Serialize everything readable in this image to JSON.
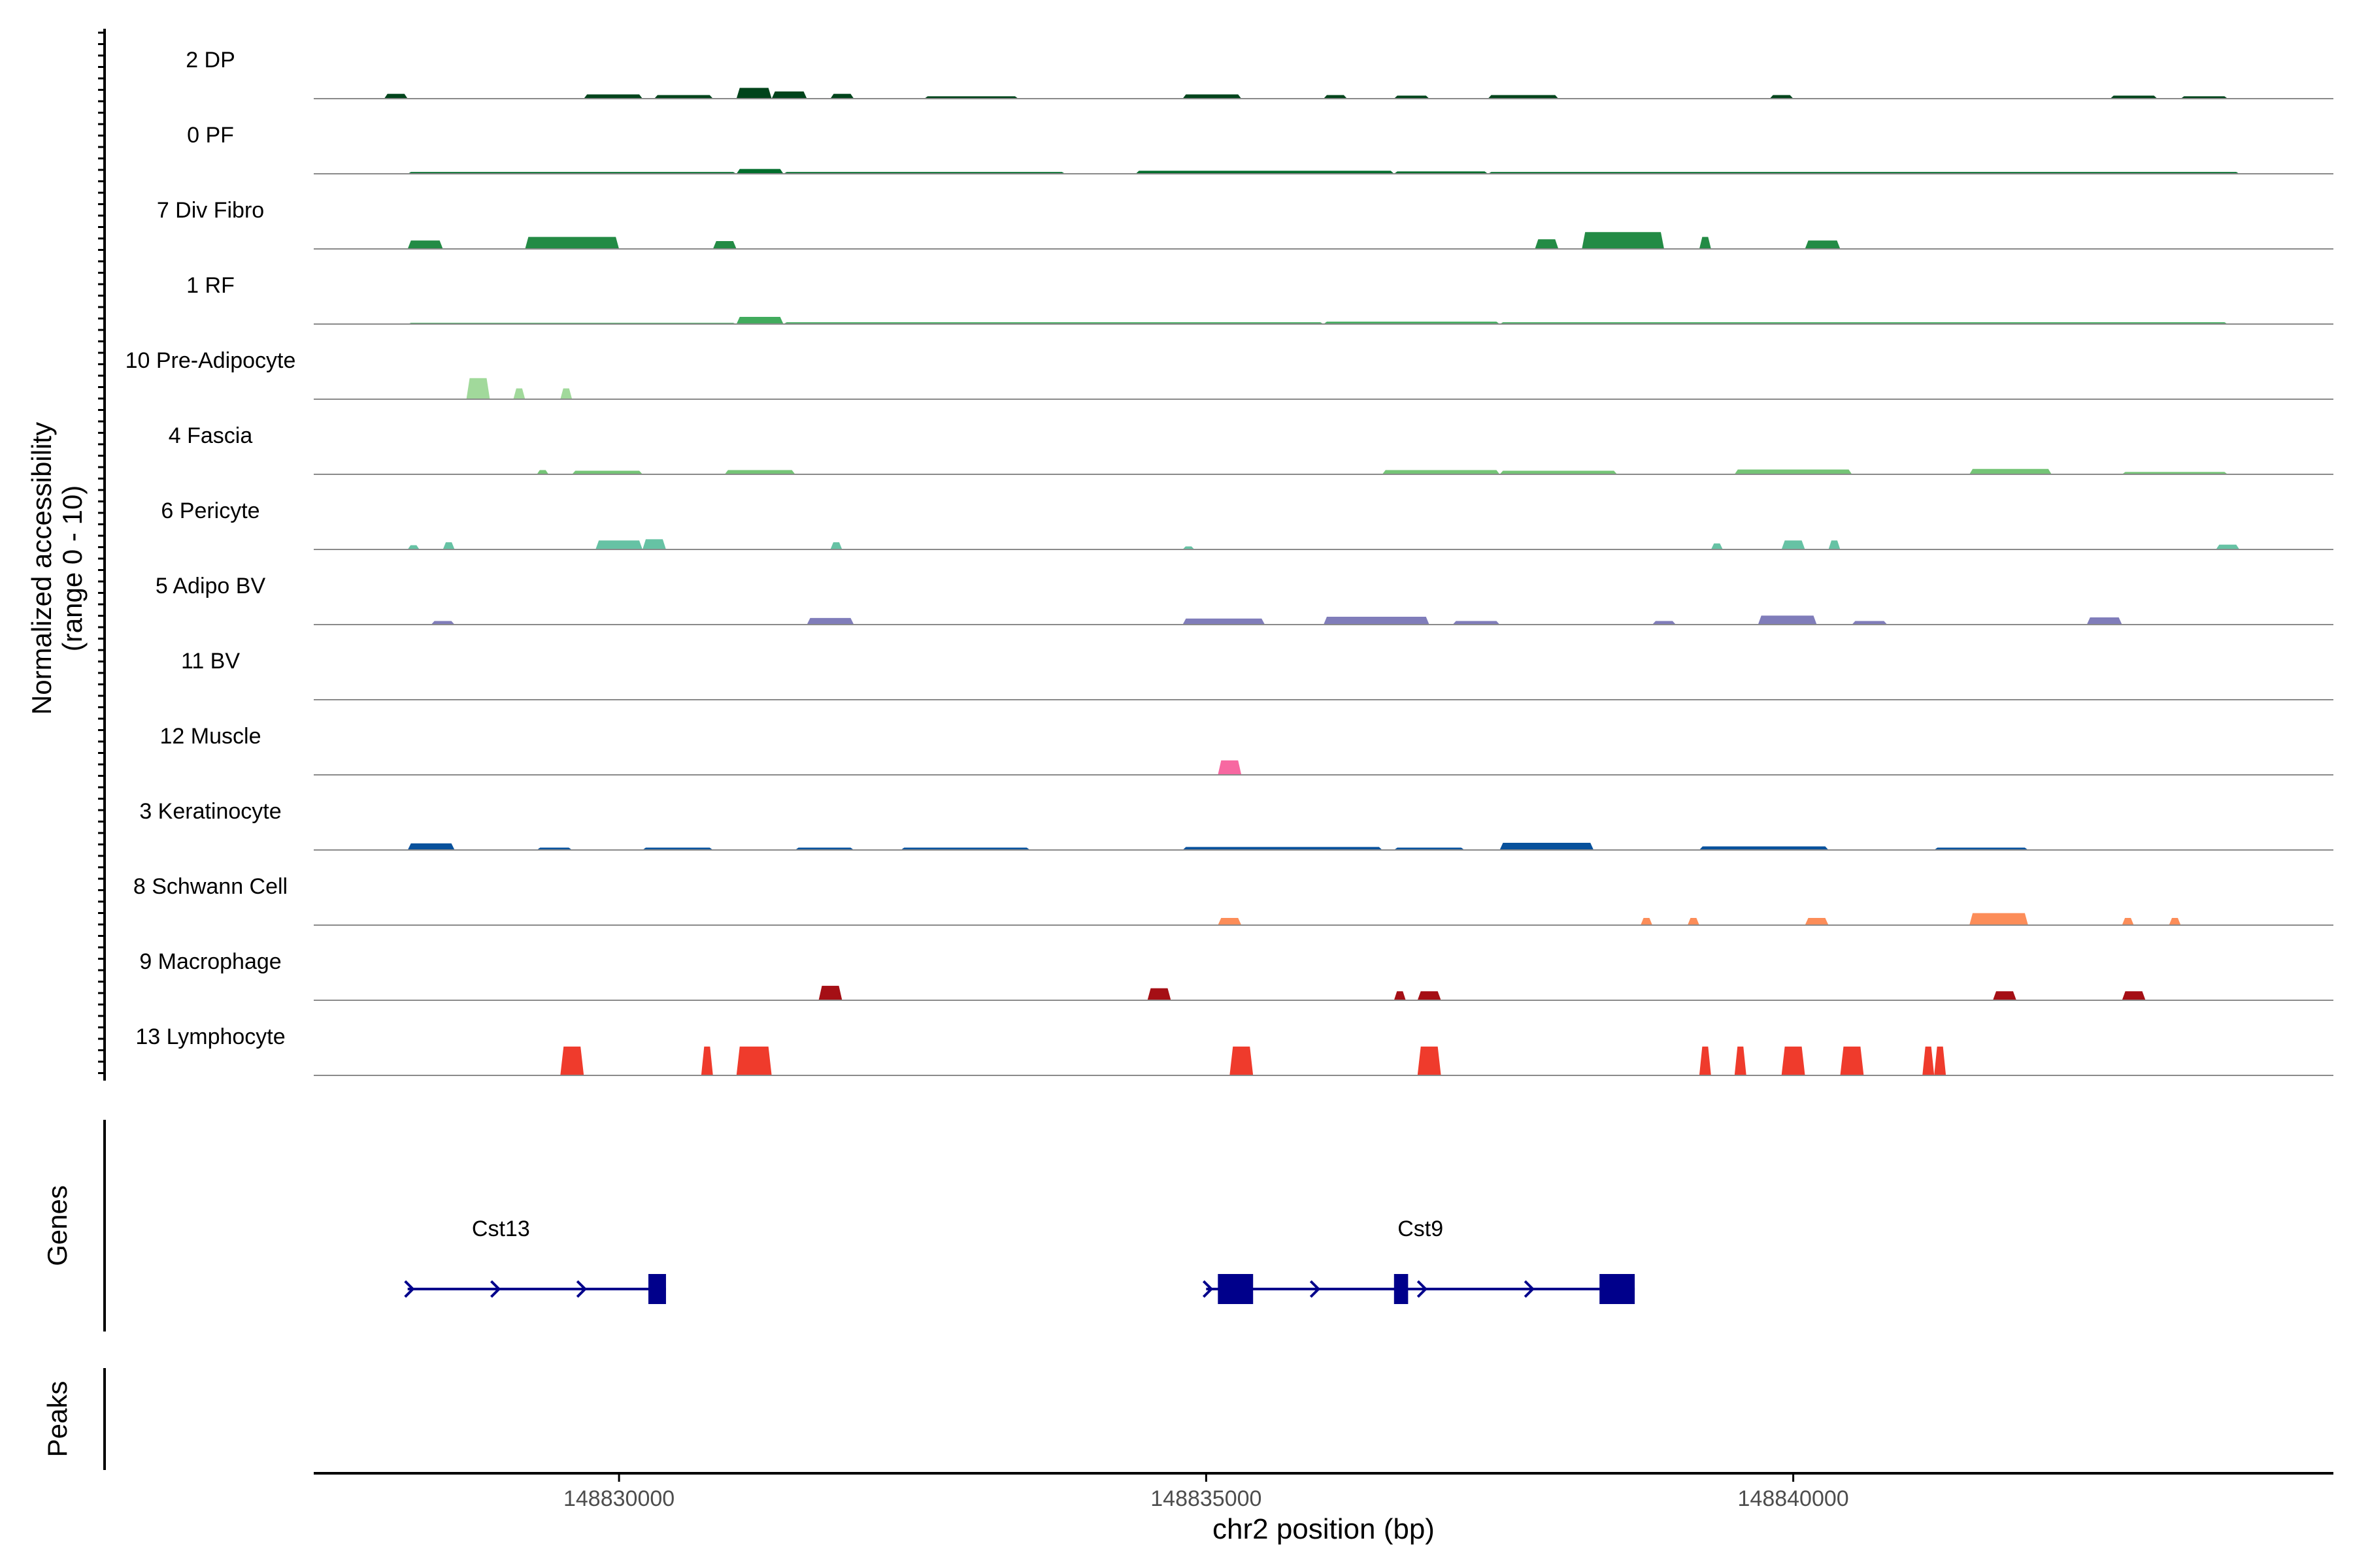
{
  "chart_data": {
    "type": "area",
    "chromosome": "chr2",
    "xlabel": "chr2 position (bp)",
    "xlim": [
      148827400,
      148844600
    ],
    "xticks": [
      148830000,
      148835000,
      148840000
    ],
    "xtick_labels": [
      "148830000",
      "148835000",
      "148840000"
    ],
    "ylabel_line1": "Normalized accessibility",
    "ylabel_line2": "(range 0 - 10)",
    "ylim": [
      0,
      10
    ],
    "genes_label": "Genes",
    "peaks_label": "Peaks",
    "tracks": [
      {
        "name": "2 DP",
        "color": "#00441b",
        "regions": [
          [
            148828000,
            148828200,
            0.8
          ],
          [
            148829700,
            148830200,
            0.7
          ],
          [
            148830300,
            148830800,
            0.6
          ],
          [
            148831000,
            148831300,
            1.8
          ],
          [
            148831300,
            148831600,
            1.2
          ],
          [
            148831800,
            148832000,
            0.8
          ],
          [
            148832600,
            148833400,
            0.4
          ],
          [
            148834800,
            148835300,
            0.7
          ],
          [
            148836000,
            148836200,
            0.6
          ],
          [
            148836600,
            148836900,
            0.5
          ],
          [
            148837400,
            148838000,
            0.6
          ],
          [
            148839800,
            148840000,
            0.6
          ],
          [
            148842700,
            148843100,
            0.5
          ],
          [
            148843300,
            148843700,
            0.4
          ]
        ]
      },
      {
        "name": "0 PF",
        "color": "#006d2c",
        "regions": [
          [
            148828200,
            148831000,
            0.3
          ],
          [
            148831000,
            148831400,
            0.8
          ],
          [
            148831400,
            148833800,
            0.3
          ],
          [
            148834400,
            148836600,
            0.5
          ],
          [
            148836600,
            148837400,
            0.4
          ],
          [
            148837400,
            148843800,
            0.3
          ]
        ]
      },
      {
        "name": "7 Div Fibro",
        "color": "#238b45",
        "regions": [
          [
            148828200,
            148828500,
            1.4
          ],
          [
            148829200,
            148830000,
            2.0
          ],
          [
            148830800,
            148831000,
            1.3
          ],
          [
            148837800,
            148838000,
            1.6
          ],
          [
            148838200,
            148838900,
            2.8
          ],
          [
            148839200,
            148839300,
            2.0
          ],
          [
            148840100,
            148840400,
            1.4
          ]
        ]
      },
      {
        "name": "1 RF",
        "color": "#41ab5d",
        "regions": [
          [
            148828200,
            148831000,
            0.2
          ],
          [
            148831000,
            148831400,
            1.2
          ],
          [
            148831400,
            148836000,
            0.3
          ],
          [
            148836000,
            148837500,
            0.4
          ],
          [
            148837500,
            148843700,
            0.3
          ]
        ]
      },
      {
        "name": "10 Pre-Adipocyte",
        "color": "#a1d99b",
        "regions": [
          [
            148828700,
            148828900,
            3.5
          ],
          [
            148829100,
            148829200,
            1.8
          ],
          [
            148829500,
            148829600,
            1.8
          ]
        ]
      },
      {
        "name": "4 Fascia",
        "color": "#74c476",
        "regions": [
          [
            148829300,
            148829400,
            0.7
          ],
          [
            148829600,
            148830200,
            0.6
          ],
          [
            148830900,
            148831500,
            0.7
          ],
          [
            148836500,
            148837500,
            0.7
          ],
          [
            148837500,
            148838500,
            0.6
          ],
          [
            148839500,
            148840500,
            0.8
          ],
          [
            148841500,
            148842200,
            0.9
          ],
          [
            148842800,
            148843700,
            0.4
          ]
        ]
      },
      {
        "name": "6 Pericyte",
        "color": "#66c2a4",
        "regions": [
          [
            148828200,
            148828300,
            0.7
          ],
          [
            148828500,
            148828600,
            1.2
          ],
          [
            148829800,
            148830200,
            1.5
          ],
          [
            148830200,
            148830400,
            1.7
          ],
          [
            148831800,
            148831900,
            1.2
          ],
          [
            148834800,
            148834900,
            0.5
          ],
          [
            148839300,
            148839400,
            1.0
          ],
          [
            148839900,
            148840100,
            1.5
          ],
          [
            148840300,
            148840400,
            1.5
          ],
          [
            148843600,
            148843800,
            0.8
          ]
        ]
      },
      {
        "name": "5 Adipo BV",
        "color": "#807dba",
        "regions": [
          [
            148828400,
            148828600,
            0.6
          ],
          [
            148831600,
            148832000,
            1.1
          ],
          [
            148834800,
            148835500,
            1.0
          ],
          [
            148836000,
            148836900,
            1.3
          ],
          [
            148837100,
            148837500,
            0.6
          ],
          [
            148838800,
            148839000,
            0.6
          ],
          [
            148839700,
            148840200,
            1.5
          ],
          [
            148840500,
            148840800,
            0.6
          ],
          [
            148842500,
            148842800,
            1.2
          ]
        ]
      },
      {
        "name": "11 BV",
        "color": "#54278f",
        "regions": []
      },
      {
        "name": "12 Muscle",
        "color": "#f768a1",
        "regions": [
          [
            148835100,
            148835300,
            2.4
          ]
        ]
      },
      {
        "name": "3 Keratinocyte",
        "color": "#08519c",
        "regions": [
          [
            148828200,
            148828600,
            1.1
          ],
          [
            148829300,
            148829600,
            0.4
          ],
          [
            148830200,
            148830800,
            0.4
          ],
          [
            148831500,
            148832000,
            0.4
          ],
          [
            148832400,
            148833500,
            0.4
          ],
          [
            148834800,
            148836500,
            0.5
          ],
          [
            148836600,
            148837200,
            0.4
          ],
          [
            148837500,
            148838300,
            1.2
          ],
          [
            148839200,
            148840300,
            0.6
          ],
          [
            148841200,
            148842000,
            0.4
          ]
        ]
      },
      {
        "name": "8 Schwann Cell",
        "color": "#fc8d59",
        "regions": [
          [
            148835100,
            148835300,
            1.2
          ],
          [
            148838700,
            148838800,
            1.2
          ],
          [
            148839100,
            148839200,
            1.2
          ],
          [
            148840100,
            148840300,
            1.2
          ],
          [
            148841500,
            148842000,
            2.0
          ],
          [
            148842800,
            148842900,
            1.2
          ],
          [
            148843200,
            148843300,
            1.2
          ]
        ]
      },
      {
        "name": "9 Macrophage",
        "color": "#a50f15",
        "regions": [
          [
            148831700,
            148831900,
            2.4
          ],
          [
            148834500,
            148834700,
            2.0
          ],
          [
            148836600,
            148836700,
            1.5
          ],
          [
            148836800,
            148837000,
            1.5
          ],
          [
            148841700,
            148841900,
            1.5
          ],
          [
            148842800,
            148843000,
            1.5
          ]
        ]
      },
      {
        "name": "13 Lymphocyte",
        "color": "#ef3b2c",
        "regions": [
          [
            148829500,
            148829700,
            4.8
          ],
          [
            148830700,
            148830800,
            4.8
          ],
          [
            148831000,
            148831300,
            4.8
          ],
          [
            148835200,
            148835400,
            4.8
          ],
          [
            148836800,
            148837000,
            4.8
          ],
          [
            148839200,
            148839300,
            4.8
          ],
          [
            148839500,
            148839600,
            4.8
          ],
          [
            148839900,
            148840100,
            4.8
          ],
          [
            148840400,
            148840600,
            4.8
          ],
          [
            148841100,
            148841200,
            4.8
          ],
          [
            148841200,
            148841300,
            4.8
          ]
        ]
      }
    ],
    "genes": [
      {
        "name": "Cst13",
        "strand": "+",
        "start": 148828200,
        "end": 148830400,
        "exons": [
          [
            148830250,
            148830400
          ]
        ]
      },
      {
        "name": "Cst9",
        "strand": "+",
        "start": 148835000,
        "end": 148838650,
        "exons": [
          [
            148835100,
            148835400
          ],
          [
            148836600,
            148836720
          ],
          [
            148838350,
            148838650
          ]
        ]
      }
    ],
    "peaks": []
  }
}
